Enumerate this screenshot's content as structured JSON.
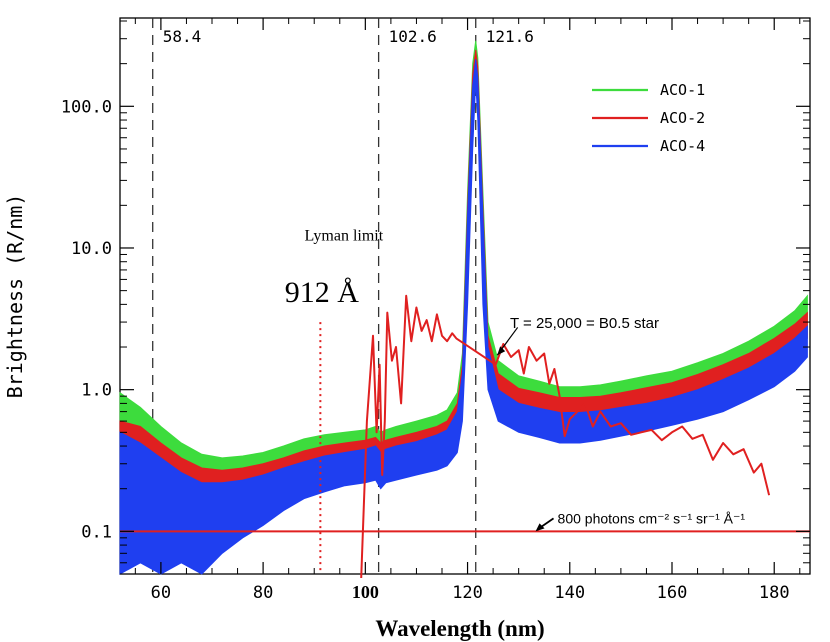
{
  "chart_data": {
    "type": "line",
    "xlabel": "Wavelength (nm)",
    "ylabel": "Brightness (R/nm)",
    "xlim": [
      52,
      187
    ],
    "ylim": [
      0.05,
      420
    ],
    "yscale": "log",
    "xticks": [
      60,
      80,
      100,
      120,
      140,
      160,
      180
    ],
    "xtick_labels": [
      "60",
      "80",
      "100",
      "120",
      "140",
      "160",
      "180"
    ],
    "yticks": [
      0.1,
      1.0,
      10.0,
      100.0
    ],
    "ytick_labels": [
      "0.1",
      "1.0",
      "10.0",
      "100.0"
    ],
    "grid": false,
    "legend_position": "top-right",
    "reference_lines": [
      {
        "x": 58.4,
        "label": "58.4"
      },
      {
        "x": 102.6,
        "label": "102.6"
      },
      {
        "x": 121.6,
        "label": "121.6"
      }
    ],
    "lyman_limit": {
      "x": 91.2,
      "title": "Lyman limit",
      "label": "912 Å"
    },
    "series": [
      {
        "name": "ACO-1",
        "color": "#3ddc3d",
        "x": [
          52,
          56,
          60,
          64,
          68,
          72,
          76,
          80,
          84,
          88,
          92,
          96,
          100,
          102,
          103,
          104,
          106,
          110,
          114,
          116,
          118,
          119,
          120,
          121,
          121.6,
          122,
          123,
          124,
          126,
          130,
          134,
          138,
          142,
          146,
          150,
          155,
          160,
          165,
          170,
          175,
          180,
          184,
          186.5
        ],
        "lower": [
          0.25,
          0.24,
          0.21,
          0.17,
          0.15,
          0.17,
          0.2,
          0.22,
          0.25,
          0.29,
          0.31,
          0.33,
          0.35,
          0.36,
          0.33,
          0.35,
          0.37,
          0.39,
          0.42,
          0.45,
          0.55,
          0.9,
          8,
          90,
          230,
          120,
          6,
          1.5,
          1.0,
          0.85,
          0.8,
          0.75,
          0.75,
          0.78,
          0.82,
          0.88,
          0.95,
          1.05,
          1.2,
          1.45,
          1.8,
          2.3,
          2.8
        ],
        "upper": [
          0.95,
          0.75,
          0.55,
          0.42,
          0.35,
          0.33,
          0.34,
          0.36,
          0.4,
          0.45,
          0.48,
          0.5,
          0.52,
          0.55,
          0.5,
          0.52,
          0.55,
          0.6,
          0.66,
          0.72,
          0.95,
          1.8,
          25,
          200,
          290,
          220,
          25,
          3,
          1.6,
          1.25,
          1.15,
          1.05,
          1.05,
          1.08,
          1.15,
          1.25,
          1.35,
          1.55,
          1.8,
          2.2,
          2.8,
          3.6,
          4.6
        ]
      },
      {
        "name": "ACO-2",
        "color": "#e02020",
        "x": [
          52,
          56,
          60,
          64,
          68,
          72,
          76,
          80,
          84,
          88,
          92,
          96,
          100,
          102,
          103,
          104,
          106,
          110,
          114,
          116,
          118,
          119,
          120,
          121,
          121.6,
          122,
          123,
          124,
          126,
          130,
          134,
          138,
          142,
          146,
          150,
          155,
          160,
          165,
          170,
          175,
          180,
          184,
          186.5
        ],
        "lower": [
          0.2,
          0.18,
          0.16,
          0.13,
          0.11,
          0.13,
          0.16,
          0.18,
          0.21,
          0.24,
          0.26,
          0.28,
          0.3,
          0.31,
          0.28,
          0.3,
          0.32,
          0.34,
          0.36,
          0.38,
          0.48,
          0.8,
          6,
          70,
          190,
          100,
          5,
          1.3,
          0.85,
          0.72,
          0.66,
          0.62,
          0.62,
          0.64,
          0.68,
          0.74,
          0.8,
          0.88,
          1.0,
          1.2,
          1.5,
          1.9,
          2.3
        ],
        "upper": [
          0.6,
          0.55,
          0.42,
          0.33,
          0.28,
          0.27,
          0.28,
          0.3,
          0.33,
          0.37,
          0.4,
          0.42,
          0.44,
          0.46,
          0.42,
          0.44,
          0.46,
          0.5,
          0.55,
          0.6,
          0.8,
          1.5,
          20,
          170,
          250,
          190,
          20,
          2.4,
          1.3,
          1.02,
          0.95,
          0.88,
          0.88,
          0.9,
          0.95,
          1.03,
          1.12,
          1.28,
          1.5,
          1.8,
          2.3,
          2.9,
          3.5
        ]
      },
      {
        "name": "ACO-4",
        "color": "#1f3ff0",
        "x": [
          52,
          56,
          60,
          64,
          68,
          72,
          76,
          80,
          84,
          88,
          92,
          96,
          100,
          102,
          103,
          104,
          106,
          110,
          114,
          116,
          118,
          119,
          120,
          121,
          121.6,
          122,
          123,
          124,
          126,
          130,
          134,
          138,
          142,
          146,
          150,
          155,
          160,
          165,
          170,
          175,
          180,
          184,
          186.5
        ],
        "lower": [
          0.04,
          0.06,
          0.05,
          0.06,
          0.04,
          0.07,
          0.09,
          0.11,
          0.14,
          0.17,
          0.19,
          0.21,
          0.22,
          0.23,
          0.2,
          0.22,
          0.23,
          0.25,
          0.27,
          0.29,
          0.36,
          0.6,
          4,
          50,
          150,
          80,
          4,
          1.0,
          0.6,
          0.5,
          0.46,
          0.42,
          0.42,
          0.44,
          0.47,
          0.51,
          0.56,
          0.62,
          0.7,
          0.85,
          1.05,
          1.35,
          1.7
        ],
        "upper": [
          0.5,
          0.42,
          0.33,
          0.26,
          0.22,
          0.22,
          0.23,
          0.25,
          0.28,
          0.31,
          0.34,
          0.36,
          0.38,
          0.4,
          0.36,
          0.38,
          0.4,
          0.43,
          0.48,
          0.52,
          0.7,
          1.3,
          17,
          140,
          215,
          160,
          17,
          2.0,
          1.0,
          0.8,
          0.74,
          0.69,
          0.69,
          0.71,
          0.75,
          0.8,
          0.88,
          1.0,
          1.18,
          1.42,
          1.8,
          2.3,
          2.8
        ]
      }
    ],
    "model_curve": {
      "label": "T = 25,000 = B0.5 star",
      "color": "#e02020",
      "x": [
        99.2,
        100.3,
        101.5,
        102.2,
        102.8,
        103.3,
        103.8,
        104.3,
        105.2,
        106.0,
        107.0,
        108.0,
        109.0,
        110.0,
        111.0,
        112.0,
        113.0,
        114.0,
        115.0,
        116.0,
        117.0,
        117.8,
        125.5,
        127,
        128.5,
        130,
        131,
        132,
        133.5,
        135,
        136,
        137,
        138,
        139,
        140,
        141.5,
        143,
        144.5,
        146,
        148,
        150,
        152,
        154,
        156,
        158,
        160,
        162,
        164,
        166,
        168,
        170,
        172,
        174,
        176,
        177.5,
        179
      ],
      "y": [
        0.03,
        0.6,
        2.4,
        0.5,
        1.5,
        0.25,
        0.6,
        3.5,
        1.6,
        2.0,
        0.8,
        4.6,
        2.2,
        3.8,
        2.6,
        3.1,
        2.2,
        3.4,
        2.4,
        2.2,
        2.5,
        2.3,
        1.5,
        2.1,
        1.7,
        1.9,
        1.3,
        2.0,
        1.6,
        1.8,
        1.1,
        1.4,
        0.9,
        0.47,
        0.62,
        0.7,
        0.8,
        0.55,
        0.7,
        0.55,
        0.58,
        0.48,
        0.5,
        0.52,
        0.44,
        0.5,
        0.55,
        0.45,
        0.48,
        0.32,
        0.42,
        0.35,
        0.38,
        0.26,
        0.3,
        0.18
      ]
    },
    "flux_line": {
      "y": 0.1,
      "label_prefix": "800 photons cm",
      "label_full": "800 photons cm⁻² s⁻¹ sr⁻¹ Å⁻¹",
      "color": "#e02020"
    }
  }
}
